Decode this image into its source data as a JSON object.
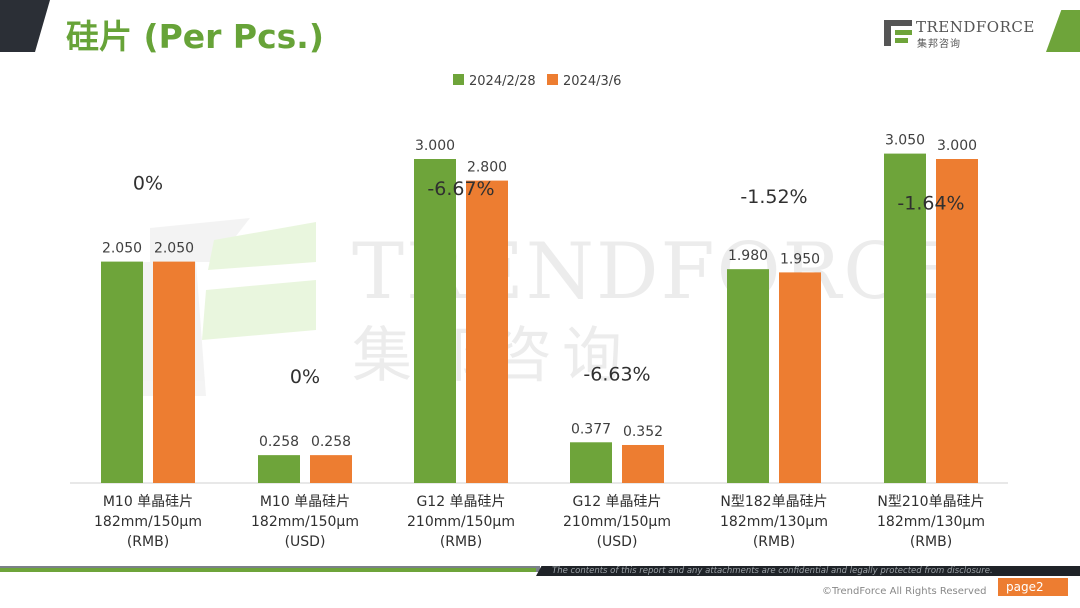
{
  "page": {
    "title": "硅片 (Per Pcs.)",
    "logo": {
      "name": "TRENDFORCE",
      "sub": "集邦咨询"
    },
    "watermark": {
      "name": "TRENDFORCE",
      "sub": "集邦咨询"
    },
    "footer": {
      "note": "The contents of this report and any attachments are confidential and legally protected from disclosure.",
      "page_label": "page2",
      "copyright": "©TrendForce All Rights Reserved"
    },
    "colors": {
      "series1": "#6ea43a",
      "series2": "#ed7d31",
      "title": "#67a338"
    }
  },
  "chart_data": {
    "type": "bar",
    "categories": [
      [
        "M10 单晶硅片",
        "182mm/150μm",
        "(RMB)"
      ],
      [
        "M10 单晶硅片",
        "182mm/150μm",
        "(USD)"
      ],
      [
        "G12 单晶硅片",
        "210mm/150μm",
        "(RMB)"
      ],
      [
        "G12 单晶硅片",
        "210mm/150μm",
        "(USD)"
      ],
      [
        "N型182单晶硅片",
        "182mm/130μm",
        "(RMB)"
      ],
      [
        "N型210单晶硅片",
        "182mm/130μm",
        "(RMB)"
      ]
    ],
    "value_scale": [
      "RMB",
      "USD",
      "RMB",
      "USD",
      "RMB",
      "RMB"
    ],
    "series": [
      {
        "name": "2024/2/28",
        "values": [
          2.05,
          0.258,
          3.0,
          0.377,
          1.98,
          3.05
        ],
        "labels": [
          "2.050",
          "0.258",
          "3.000",
          "0.377",
          "1.980",
          "3.050"
        ]
      },
      {
        "name": "2024/3/6",
        "values": [
          2.05,
          0.258,
          2.8,
          0.352,
          1.95,
          3.0
        ],
        "labels": [
          "2.050",
          "0.258",
          "2.800",
          "0.352",
          "1.950",
          "3.000"
        ]
      }
    ],
    "changes": [
      "0%",
      "0%",
      "-6.67%",
      "-6.63%",
      "-1.52%",
      "-1.64%"
    ],
    "legend_position": "top-center",
    "grid": false
  }
}
